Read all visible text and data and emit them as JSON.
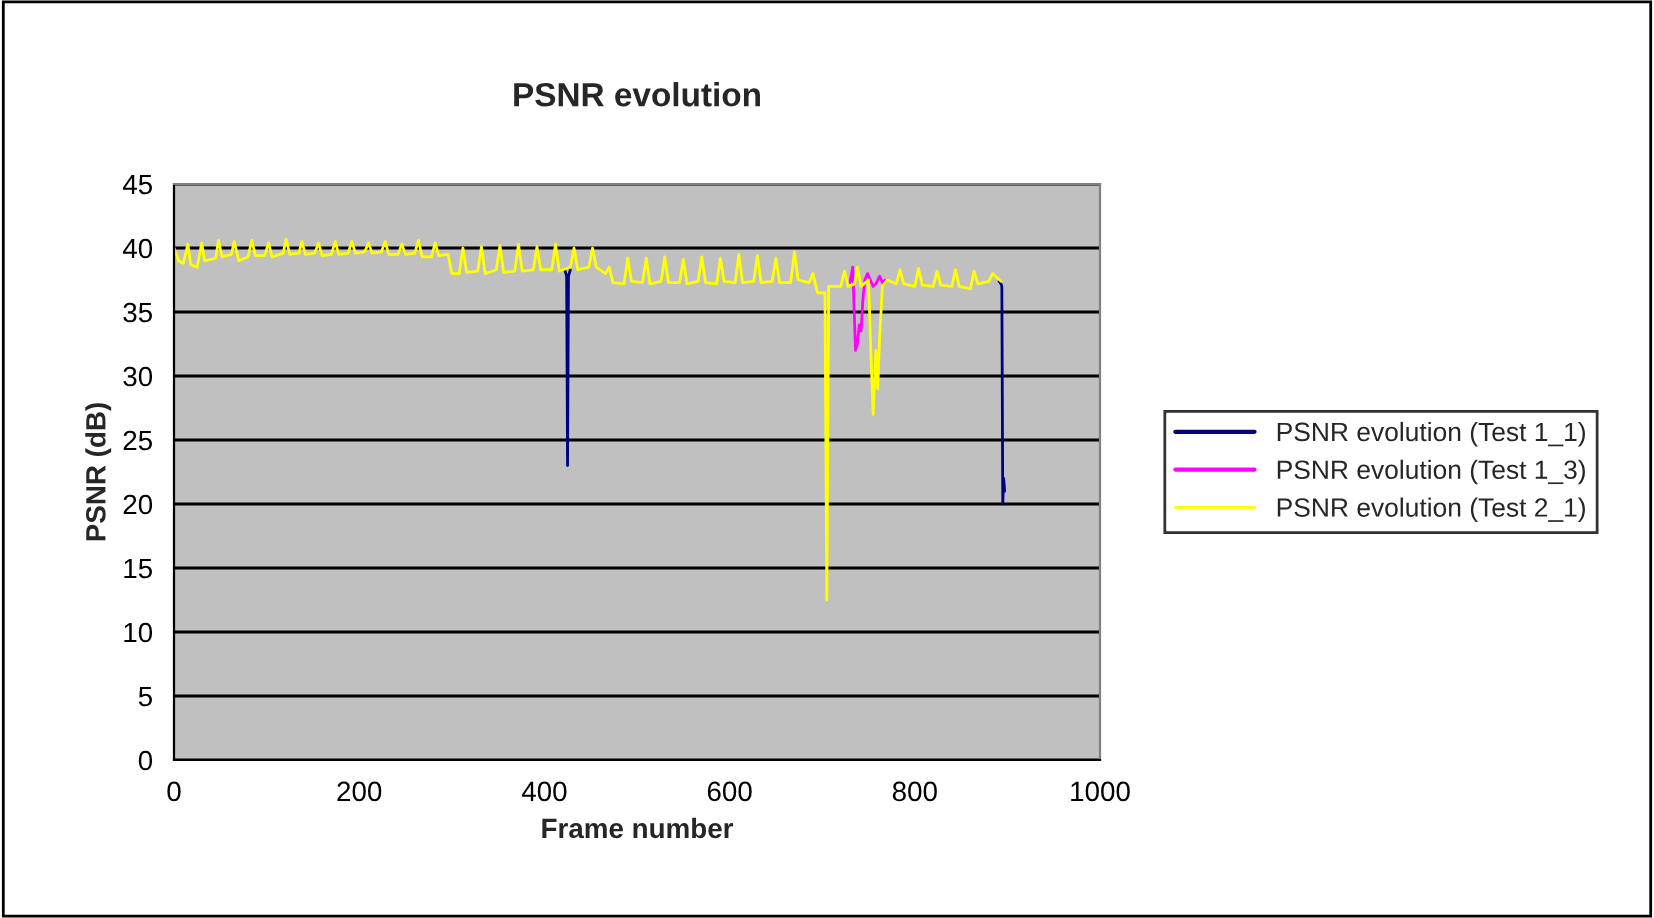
{
  "chart_data": {
    "type": "line",
    "title": "PSNR evolution",
    "xlabel": "Frame number",
    "ylabel": "PSNR (dB)",
    "xlim": [
      0,
      1000
    ],
    "xticks": [
      0,
      200,
      400,
      600,
      800,
      1000
    ],
    "ylim": [
      0,
      45
    ],
    "yticks": [
      0,
      5,
      10,
      15,
      20,
      25,
      30,
      35,
      40,
      45
    ],
    "grid": "y",
    "legend": "right",
    "marker": "none",
    "line_style": "solid",
    "series": [
      {
        "name": "PSNR evolution (Test 1_1)",
        "color": "#000080",
        "x": [
          422,
          424,
          425,
          426,
          428,
          null,
          891,
          893,
          894,
          895,
          896,
          897
        ],
        "values": [
          38.3,
          37.8,
          23,
          37.8,
          38.3,
          null,
          37.4,
          37.2,
          37,
          20,
          22,
          21
        ]
      },
      {
        "name": "PSNR evolution (Test 1_3)",
        "color": "#ff00ff",
        "x": [
          730,
          733,
          736,
          738,
          740,
          742,
          744,
          746,
          749,
          752,
          755,
          758,
          762,
          765,
          768
        ],
        "values": [
          37.3,
          38.5,
          32,
          32.5,
          34,
          33.5,
          36,
          37.5,
          38,
          37.5,
          37,
          37.2,
          37.8,
          37.3,
          37.5
        ]
      },
      {
        "name": "PSNR evolution (Test 2_1)",
        "color": "#ffff00",
        "x": [
          0,
          5,
          10,
          15,
          18,
          25,
          30,
          33,
          45,
          48,
          52,
          62,
          65,
          70,
          80,
          84,
          88,
          98,
          102,
          106,
          118,
          121,
          125,
          135,
          138,
          142,
          152,
          156,
          160,
          170,
          174,
          178,
          188,
          192,
          196,
          206,
          210,
          214,
          224,
          228,
          232,
          242,
          246,
          250,
          260,
          264,
          268,
          278,
          282,
          286,
          296,
          300,
          308,
          312,
          316,
          328,
          332,
          336,
          348,
          352,
          356,
          368,
          372,
          376,
          388,
          392,
          396,
          408,
          412,
          416,
          428,
          432,
          436,
          448,
          452,
          456,
          466,
          470,
          474,
          486,
          490,
          494,
          506,
          510,
          514,
          526,
          530,
          534,
          546,
          550,
          554,
          566,
          570,
          574,
          586,
          590,
          594,
          606,
          610,
          614,
          626,
          630,
          634,
          646,
          650,
          654,
          666,
          670,
          674,
          686,
          690,
          695,
          703,
          705,
          707,
          720,
          724,
          728,
          735,
          738,
          742,
          750,
          753,
          755,
          758,
          760,
          762,
          765,
          770,
          780,
          784,
          788,
          800,
          804,
          808,
          820,
          824,
          828,
          840,
          844,
          848,
          860,
          864,
          868,
          880,
          884,
          893
        ],
        "values": [
          40,
          39,
          38.8,
          40.3,
          38.7,
          38.5,
          40.4,
          39,
          39.2,
          40.6,
          39.3,
          39.5,
          40.5,
          39,
          39.3,
          40.6,
          39.4,
          39.4,
          40.4,
          39.3,
          39.6,
          40.7,
          39.5,
          39.6,
          40.5,
          39.5,
          39.6,
          40.4,
          39.4,
          39.5,
          40.5,
          39.5,
          39.6,
          40.5,
          39.6,
          39.7,
          40.4,
          39.6,
          39.7,
          40.5,
          39.5,
          39.5,
          40.3,
          39.5,
          39.6,
          40.6,
          39.3,
          39.3,
          40.4,
          39.4,
          39.5,
          38,
          38,
          40,
          38.1,
          38.2,
          40.1,
          38,
          38.3,
          40.2,
          38.1,
          38.2,
          40.3,
          38.2,
          38.3,
          40.1,
          38.3,
          38.3,
          40.3,
          38.2,
          38.5,
          40,
          38.3,
          38.5,
          40,
          38.5,
          38,
          38.5,
          37.3,
          37.2,
          39.2,
          37.4,
          37.3,
          39.2,
          37.2,
          37.4,
          39.3,
          37.3,
          37.3,
          39.1,
          37.2,
          37.4,
          39.3,
          37.3,
          37.2,
          39.2,
          37.4,
          37.3,
          39.5,
          37.3,
          37.4,
          39.4,
          37.3,
          37.4,
          39.2,
          37.3,
          37.3,
          39.7,
          37.5,
          37.3,
          38,
          36.5,
          36.5,
          12.5,
          37,
          37,
          38.2,
          37,
          37.2,
          38.5,
          37,
          37.5,
          31,
          27,
          32,
          29,
          33,
          37,
          37.5,
          37.2,
          38.3,
          37.2,
          37,
          38.4,
          37.1,
          37,
          38.2,
          37.1,
          37,
          38.3,
          37,
          36.8,
          38.2,
          37.2,
          37.4,
          38,
          37.4
        ]
      }
    ]
  }
}
